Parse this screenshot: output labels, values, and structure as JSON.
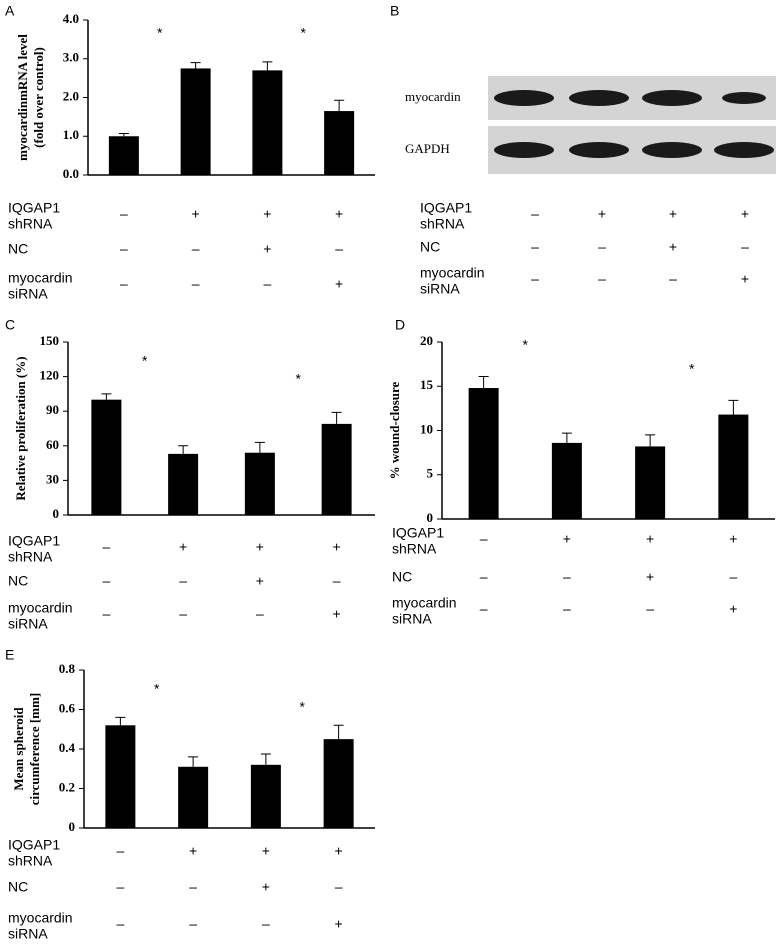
{
  "chart_data": [
    {
      "type": "bar",
      "label": "A",
      "ylabel": [
        "myocardinmRNA level",
        "(fold over control)"
      ],
      "values": [
        1.0,
        2.75,
        2.7,
        1.65
      ],
      "errors": [
        0.07,
        0.15,
        0.22,
        0.28
      ],
      "color": "#000000",
      "ylim": [
        0,
        4
      ],
      "yticks": [
        {
          "value": 0,
          "label": "0.0"
        },
        {
          "value": 1,
          "label": "1.0"
        },
        {
          "value": 2,
          "label": "2.0"
        },
        {
          "value": 3,
          "label": "3.0"
        },
        {
          "value": 4,
          "label": "4.0"
        }
      ],
      "significance": [
        {
          "text": "*",
          "between": [
            0,
            1
          ]
        },
        {
          "text": "*",
          "between": [
            2,
            3
          ]
        }
      ],
      "conditions": [
        {
          "name": [
            "IQGAP1",
            "shRNA"
          ],
          "signs": [
            "–",
            "+",
            "+",
            "+"
          ]
        },
        {
          "name": [
            "NC"
          ],
          "signs": [
            "–",
            "–",
            "+",
            "–"
          ]
        },
        {
          "name": [
            "myocardin",
            "siRNA"
          ],
          "signs": [
            "–",
            "–",
            "–",
            "+"
          ]
        }
      ]
    },
    {
      "type": "bar",
      "label": "C",
      "ylabel": [
        "Relative proliferation (%)"
      ],
      "values": [
        100,
        53,
        54,
        79
      ],
      "errors": [
        5,
        7,
        9,
        10
      ],
      "color": "#000000",
      "ylim": [
        0,
        150
      ],
      "yticks": [
        0,
        30,
        60,
        90,
        120,
        150
      ],
      "significance": [
        {
          "text": "*",
          "between": [
            0,
            1
          ]
        },
        {
          "text": "*",
          "between": [
            2,
            3
          ]
        }
      ],
      "conditions": [
        {
          "name": [
            "IQGAP1",
            "shRNA"
          ],
          "signs": [
            "–",
            "+",
            "+",
            "+"
          ]
        },
        {
          "name": [
            "NC"
          ],
          "signs": [
            "–",
            "–",
            "+",
            "–"
          ]
        },
        {
          "name": [
            "myocardin",
            "siRNA"
          ],
          "signs": [
            "–",
            "–",
            "–",
            "+"
          ]
        }
      ]
    },
    {
      "type": "bar",
      "label": "D",
      "ylabel": [
        "% wound-closure"
      ],
      "values": [
        14.8,
        8.6,
        8.2,
        11.8
      ],
      "errors": [
        1.3,
        1.1,
        1.3,
        1.6
      ],
      "color": "#000000",
      "ylim": [
        0,
        20
      ],
      "yticks": [
        0,
        5,
        10,
        15,
        20
      ],
      "significance": [
        {
          "text": "*",
          "between": [
            0,
            1
          ]
        },
        {
          "text": "*",
          "between": [
            2,
            3
          ]
        }
      ],
      "conditions": [
        {
          "name": [
            "IQGAP1",
            "shRNA"
          ],
          "signs": [
            "–",
            "+",
            "+",
            "+"
          ]
        },
        {
          "name": [
            "NC"
          ],
          "signs": [
            "–",
            "–",
            "+",
            "–"
          ]
        },
        {
          "name": [
            "myocardin",
            "siRNA"
          ],
          "signs": [
            "–",
            "–",
            "–",
            "+"
          ]
        }
      ]
    },
    {
      "type": "bar",
      "label": "E",
      "ylabel": [
        "Mean spheroid",
        "circumference [mm]"
      ],
      "values": [
        0.52,
        0.31,
        0.32,
        0.45
      ],
      "errors": [
        0.04,
        0.05,
        0.055,
        0.07
      ],
      "color": "#000000",
      "ylim": [
        0,
        0.8
      ],
      "yticks": [
        0,
        0.2,
        0.4,
        0.6,
        0.8
      ],
      "significance": [
        {
          "text": "*",
          "between": [
            0,
            1
          ]
        },
        {
          "text": "*",
          "between": [
            2,
            3
          ]
        }
      ],
      "conditions": [
        {
          "name": [
            "IQGAP1",
            "shRNA"
          ],
          "signs": [
            "–",
            "+",
            "+",
            "+"
          ]
        },
        {
          "name": [
            "NC"
          ],
          "signs": [
            "–",
            "–",
            "+",
            "–"
          ]
        },
        {
          "name": [
            "myocardin",
            "siRNA"
          ],
          "signs": [
            "–",
            "–",
            "–",
            "+"
          ]
        }
      ]
    }
  ],
  "blot": {
    "label": "B",
    "rows": [
      "myocardin",
      "GAPDH"
    ],
    "conditions": [
      {
        "name": [
          "IQGAP1",
          "shRNA"
        ],
        "signs": [
          "–",
          "+",
          "+",
          "+"
        ]
      },
      {
        "name": [
          "NC"
        ],
        "signs": [
          "–",
          "–",
          "+",
          "–"
        ]
      },
      {
        "name": [
          "myocardin",
          "siRNA"
        ],
        "signs": [
          "–",
          "–",
          "–",
          "+"
        ]
      }
    ]
  }
}
